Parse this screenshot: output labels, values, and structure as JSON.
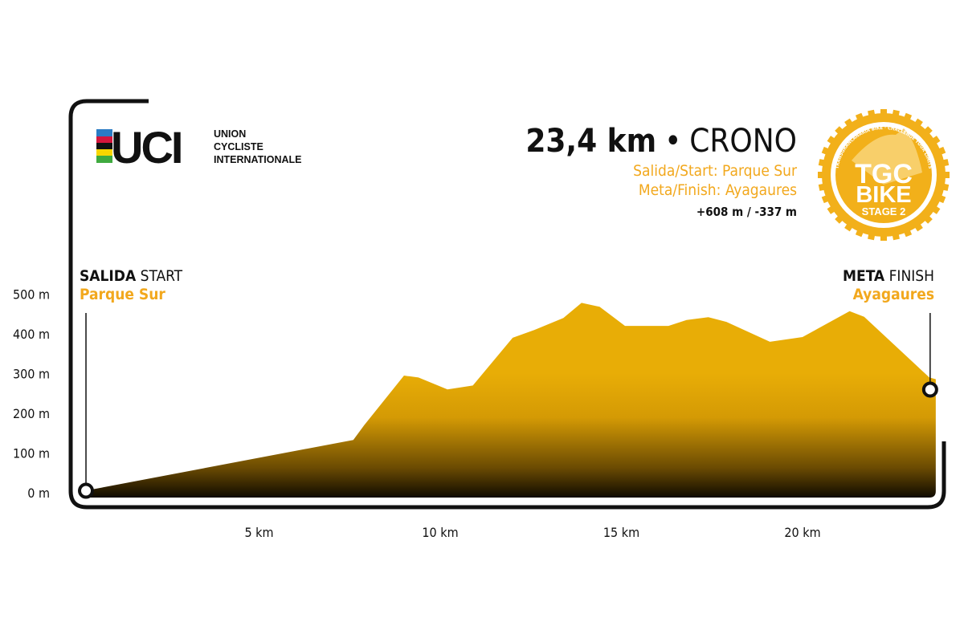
{
  "logo": {
    "uci_text": "UCI",
    "uci_lines": [
      "UNION",
      "CYCLISTE",
      "INTERNATIONALE"
    ]
  },
  "badge": {
    "line1": "TGC",
    "line2": "BIKE",
    "line3": "STAGE 2",
    "ring_text": "TRANSGRANCANARIA BIKE · CHALLENGE YOUR LIMITS"
  },
  "header": {
    "distance": "23,4 km",
    "separator": "•",
    "type": "CRONO",
    "start": "Salida/Start: Parque Sur",
    "finish": "Meta/Finish: Ayagaures",
    "elevation": "+608 m / -337 m"
  },
  "start_label": {
    "bold": "SALIDA",
    "normal": "START",
    "place": "Parque Sur"
  },
  "finish_label": {
    "bold": "META",
    "normal": "FINISH",
    "place": "Ayagaures"
  },
  "colors": {
    "accent": "#f2a81d",
    "fill": "#e8ad06",
    "dark": "#111111"
  },
  "chart_data": {
    "type": "area",
    "title": "23,4 km • CRONO",
    "xlabel": "",
    "ylabel": "",
    "xlim": [
      0,
      23.5
    ],
    "ylim": [
      0,
      500
    ],
    "x_ticks": [
      5,
      10,
      15,
      20
    ],
    "x_tick_labels": [
      "5 km",
      "10 km",
      "15 km",
      "20 km"
    ],
    "y_ticks": [
      0,
      100,
      200,
      300,
      400,
      500
    ],
    "y_tick_labels": [
      "0 m",
      "100 m",
      "200 m",
      "300 m",
      "400 m",
      "500 m"
    ],
    "grid": false,
    "x": [
      0.2,
      7.6,
      7.9,
      9.0,
      9.4,
      10.2,
      10.9,
      12.0,
      12.6,
      13.4,
      13.9,
      14.4,
      15.1,
      16.3,
      16.8,
      17.4,
      17.9,
      19.1,
      20.0,
      21.3,
      21.7,
      23.5
    ],
    "y": [
      5,
      133,
      170,
      295,
      290,
      260,
      270,
      390,
      410,
      440,
      478,
      468,
      420,
      420,
      435,
      442,
      430,
      380,
      392,
      457,
      443,
      290
    ]
  }
}
